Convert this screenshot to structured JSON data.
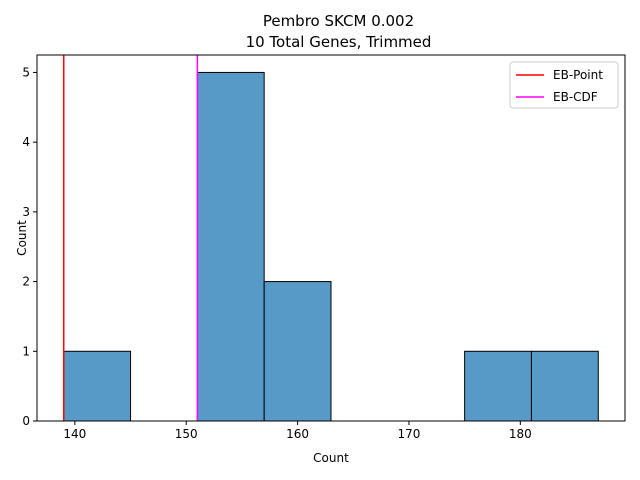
{
  "chart_data": {
    "type": "bar",
    "title": "Pembro SKCM 0.002",
    "subtitle": "10 Total Genes, Trimmed",
    "xlabel": "Count",
    "ylabel": "Count",
    "xlim": [
      136.6,
      189.4
    ],
    "ylim": [
      0,
      5.25
    ],
    "x_ticks": [
      140,
      150,
      160,
      170,
      180
    ],
    "y_ticks": [
      0,
      1,
      2,
      3,
      4,
      5
    ],
    "bins": [
      {
        "start": 139,
        "end": 145,
        "count": 1
      },
      {
        "start": 145,
        "end": 151,
        "count": 0
      },
      {
        "start": 151,
        "end": 157,
        "count": 5
      },
      {
        "start": 157,
        "end": 163,
        "count": 2
      },
      {
        "start": 163,
        "end": 169,
        "count": 0
      },
      {
        "start": 169,
        "end": 175,
        "count": 0
      },
      {
        "start": 175,
        "end": 181,
        "count": 1
      },
      {
        "start": 181,
        "end": 187,
        "count": 1
      }
    ],
    "bar_color": "#5799c7",
    "vlines": [
      {
        "name": "EB-Point",
        "x": 139,
        "color": "#ff0000"
      },
      {
        "name": "EB-CDF",
        "x": 151,
        "color": "#ff00ff"
      }
    ],
    "legend_position": "top-right",
    "grid": false
  }
}
